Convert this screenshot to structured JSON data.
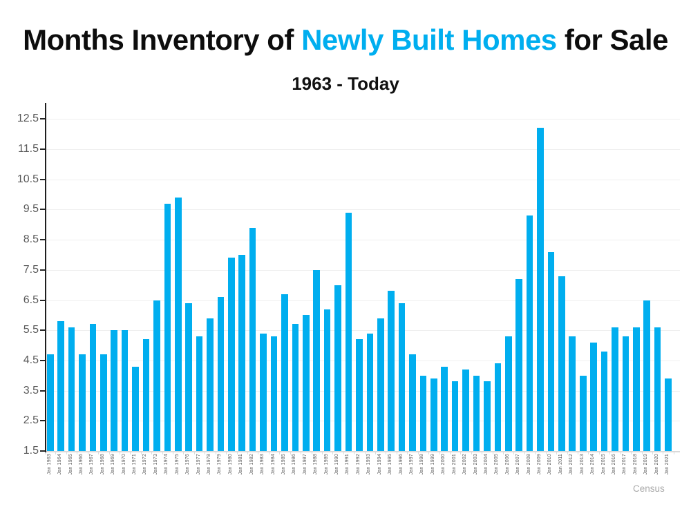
{
  "title": {
    "part1": "Months Inventory of ",
    "accent": "Newly Built Homes",
    "part2": " for Sale"
  },
  "subtitle": "1963 - Today",
  "watermark": "Census",
  "colors": {
    "accent_blue": "#00AEEF",
    "bar": "#00AEEF",
    "axis_text": "#595959",
    "axis_line": "#1f1f1f",
    "gridline": "#efefef",
    "watermark_gray": "#a9a9a9"
  },
  "chart_data": {
    "type": "bar",
    "title": "Months Inventory of Newly Built Homes for Sale",
    "subtitle": "1963 - Today",
    "xlabel": "",
    "ylabel": "",
    "ylim": [
      1.5,
      13.0
    ],
    "yticks": [
      1.5,
      2.5,
      3.5,
      4.5,
      5.5,
      6.5,
      7.5,
      8.5,
      9.5,
      10.5,
      11.5,
      12.5
    ],
    "grid": true,
    "legend": false,
    "categories": [
      "Jan 1963",
      "Jan 1964",
      "Jan 1965",
      "Jan 1966",
      "Jan 1967",
      "Jan 1968",
      "Jan 1969",
      "Jan 1970",
      "Jan 1971",
      "Jan 1972",
      "Jan 1973",
      "Jan 1974",
      "Jan 1975",
      "Jan 1976",
      "Jan 1977",
      "Jan 1978",
      "Jan 1979",
      "Jan 1980",
      "Jan 1981",
      "Jan 1982",
      "Jan 1983",
      "Jan 1984",
      "Jan 1985",
      "Jan 1986",
      "Jan 1987",
      "Jan 1988",
      "Jan 1989",
      "Jan 1990",
      "Jan 1991",
      "Jan 1992",
      "Jan 1993",
      "Jan 1994",
      "Jan 1995",
      "Jan 1996",
      "Jan 1997",
      "Jan 1998",
      "Jan 1999",
      "Jan 2000",
      "Jan 2001",
      "Jan 2002",
      "Jan 2003",
      "Jan 2004",
      "Jan 2005",
      "Jan 2006",
      "Jan 2007",
      "Jan 2008",
      "Jan 2009",
      "Jan 2010",
      "Jan 2011",
      "Jan 2012",
      "Jan 2013",
      "Jan 2014",
      "Jan 2015",
      "Jan 2016",
      "Jan 2017",
      "Jan 2018",
      "Jan 2019",
      "Jan 2020",
      "Jan 2021"
    ],
    "values": [
      4.7,
      5.8,
      5.6,
      4.7,
      5.7,
      4.7,
      5.5,
      5.5,
      4.3,
      5.2,
      6.5,
      9.7,
      9.9,
      6.4,
      5.3,
      5.9,
      6.6,
      7.9,
      8.0,
      8.9,
      5.4,
      5.3,
      6.7,
      5.7,
      6.0,
      7.5,
      6.2,
      7.0,
      9.4,
      5.2,
      5.4,
      5.9,
      6.8,
      6.4,
      4.7,
      4.0,
      3.9,
      4.3,
      3.8,
      4.2,
      4.0,
      3.8,
      4.4,
      5.3,
      7.2,
      9.3,
      12.2,
      8.1,
      7.3,
      5.3,
      4.0,
      5.1,
      4.8,
      5.6,
      5.3,
      5.6,
      6.5,
      5.6,
      3.9
    ]
  }
}
